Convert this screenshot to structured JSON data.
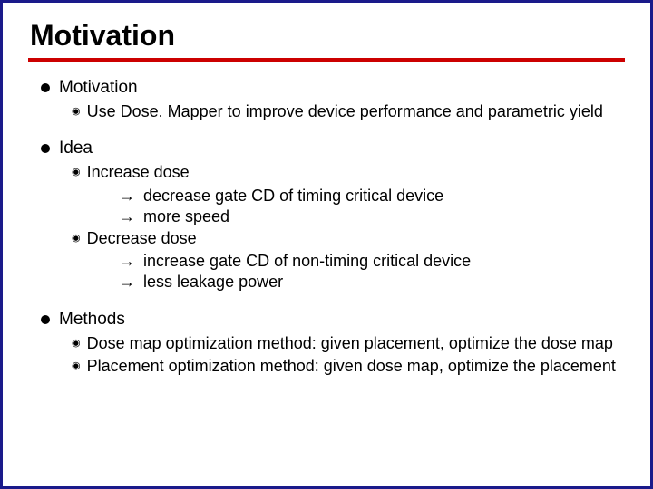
{
  "slide": {
    "title": "Motivation",
    "accent_color": "#cc0000",
    "border_color": "#1a1a8a",
    "background_color": "#ffffff",
    "title_fontsize": 32,
    "body_fontsize": 18,
    "sections": [
      {
        "heading": "Motivation",
        "items": [
          {
            "text": "Use Dose. Mapper to improve device performance and parametric yield",
            "arrows": []
          }
        ]
      },
      {
        "heading": "Idea",
        "items": [
          {
            "text": "Increase dose",
            "arrows": [
              "decrease gate CD of timing critical device",
              "more speed"
            ]
          },
          {
            "text": "Decrease dose",
            "arrows": [
              "increase gate CD of non-timing critical device",
              "less leakage power"
            ]
          }
        ]
      },
      {
        "heading": "Methods",
        "items": [
          {
            "text": "Dose map optimization method: given placement, optimize the dose map",
            "arrows": []
          },
          {
            "text": "Placement optimization method: given dose map, optimize the placement",
            "arrows": []
          }
        ]
      }
    ]
  }
}
